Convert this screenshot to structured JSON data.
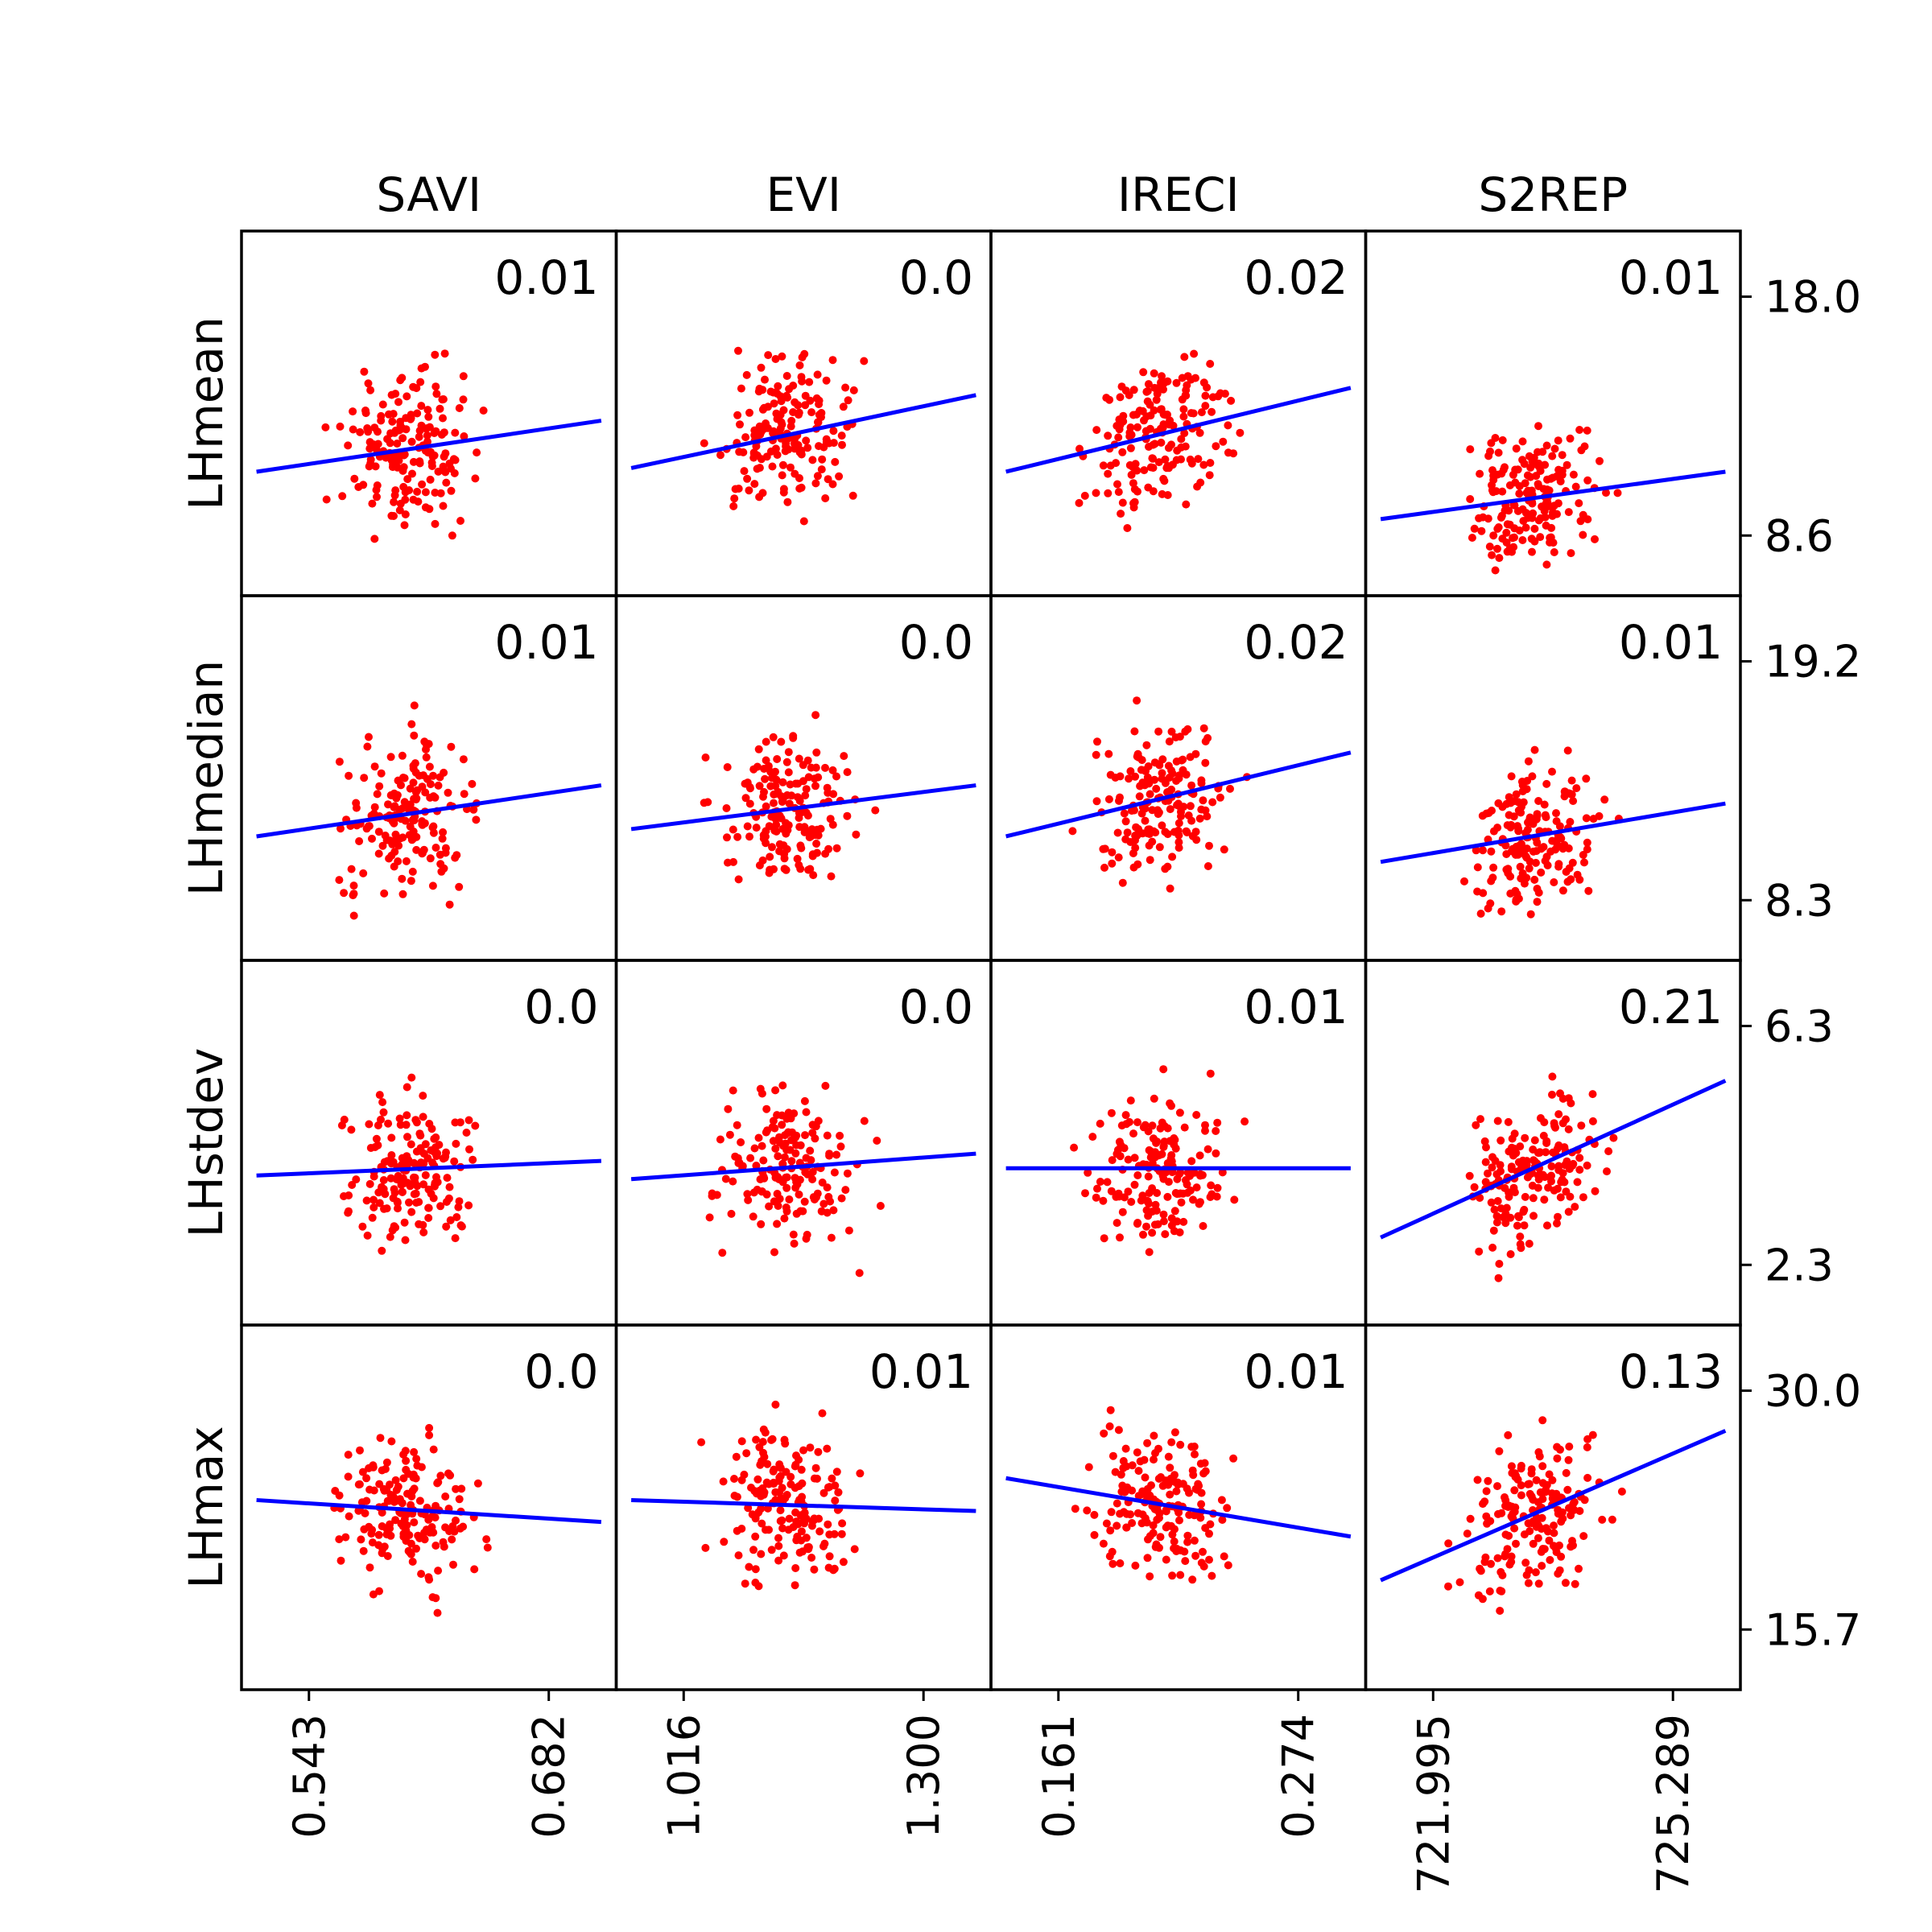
{
  "chart_data": {
    "type": "scatter",
    "columns": [
      "SAVI",
      "EVI",
      "IRECI",
      "S2REP"
    ],
    "rows": [
      "LHmean",
      "LHmedian",
      "LHstdev",
      "LHmax"
    ],
    "x_ticks": [
      [
        "0.543",
        "0.682"
      ],
      [
        "1.016",
        "1.300"
      ],
      [
        "0.161",
        "0.274"
      ],
      [
        "721.995",
        "725.289"
      ]
    ],
    "x_tick_values": [
      [
        0.543,
        0.682
      ],
      [
        1.016,
        1.3
      ],
      [
        0.161,
        0.274
      ],
      [
        721.995,
        725.289
      ]
    ],
    "y_ticks": [
      [
        "18.0",
        "8.6"
      ],
      [
        "19.2",
        "8.3"
      ],
      [
        "6.3",
        "2.3"
      ],
      [
        "30.0",
        "15.7"
      ]
    ],
    "y_tick_values": [
      [
        18.0,
        8.6
      ],
      [
        19.2,
        8.3
      ],
      [
        6.3,
        2.3
      ],
      [
        30.0,
        15.7
      ]
    ],
    "r2": [
      [
        "0.01",
        "0.0",
        "0.02",
        "0.01"
      ],
      [
        "0.01",
        "0.0",
        "0.02",
        "0.01"
      ],
      [
        "0.0",
        "0.0",
        "0.01",
        "0.21"
      ],
      [
        "0.0",
        "0.01",
        "0.01",
        "0.13"
      ]
    ],
    "fit_lines": [
      [
        [
          0.34,
          0.48
        ],
        [
          0.35,
          0.55
        ],
        [
          0.34,
          0.57
        ],
        [
          0.21,
          0.34
        ]
      ],
      [
        [
          0.34,
          0.48
        ],
        [
          0.36,
          0.48
        ],
        [
          0.34,
          0.57
        ],
        [
          0.27,
          0.43
        ]
      ],
      [
        [
          0.41,
          0.45
        ],
        [
          0.4,
          0.47
        ],
        [
          0.43,
          0.43
        ],
        [
          0.24,
          0.67
        ]
      ],
      [
        [
          0.52,
          0.46
        ],
        [
          0.52,
          0.49
        ],
        [
          0.58,
          0.42
        ],
        [
          0.3,
          0.71
        ]
      ]
    ],
    "fit_range": [
      0.04,
      0.96
    ],
    "point_color": "#ff0000",
    "line_color": "#0000ff",
    "grid": false
  }
}
